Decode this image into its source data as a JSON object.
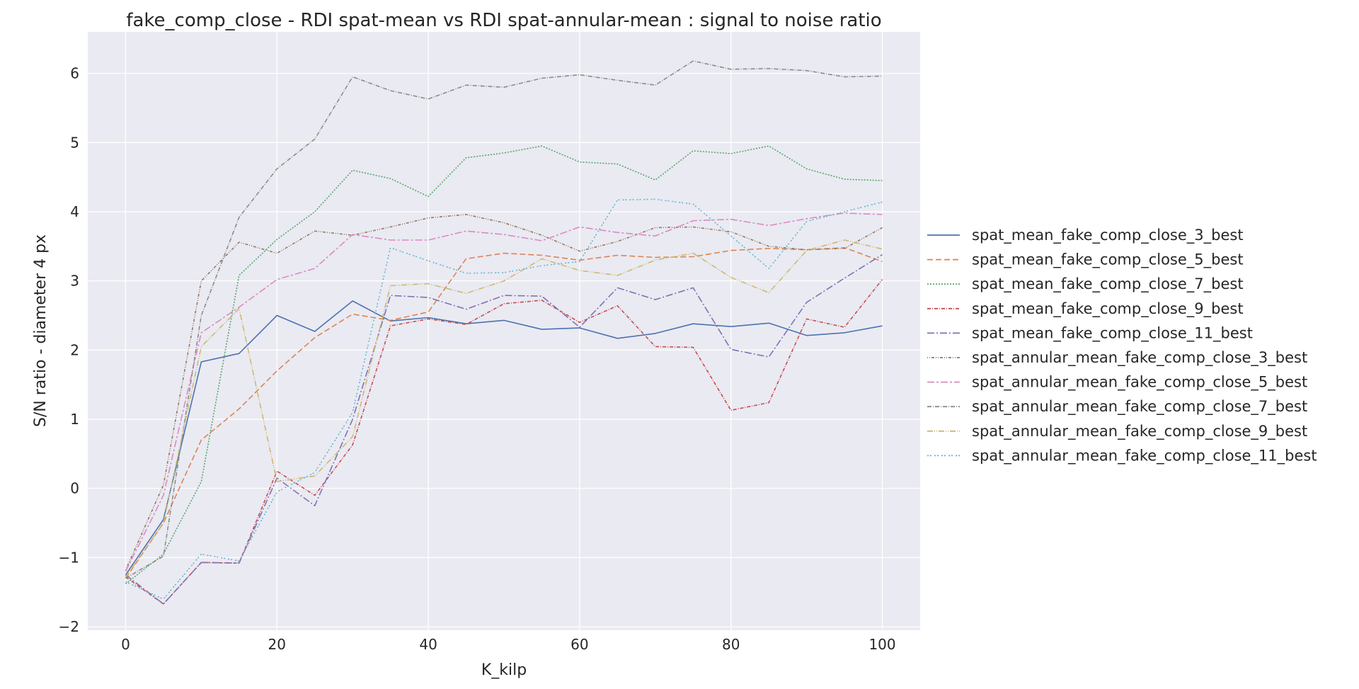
{
  "chart_data": {
    "type": "line",
    "title": "fake_comp_close - RDI spat-mean vs RDI spat-annular-mean : signal to noise ratio",
    "xlabel": "K_kilp",
    "ylabel": "S/N ratio - diameter 4 px",
    "xlim": [
      -5,
      105
    ],
    "ylim": [
      -2.05,
      6.6
    ],
    "xticks": [
      0,
      20,
      40,
      60,
      80,
      100
    ],
    "yticks": [
      -2,
      -1,
      0,
      1,
      2,
      3,
      4,
      5,
      6
    ],
    "ytick_labels": [
      "−2",
      "−1",
      "0",
      "1",
      "2",
      "3",
      "4",
      "5",
      "6"
    ],
    "grid": true,
    "legend_position": "right",
    "x": [
      0,
      5,
      10,
      15,
      20,
      25,
      30,
      35,
      40,
      45,
      50,
      55,
      60,
      65,
      70,
      75,
      80,
      85,
      90,
      95,
      100
    ],
    "series": [
      {
        "name": "spat_mean_fake_comp_close_3_best",
        "color": "#4c72b0",
        "dash": "",
        "values": [
          -1.25,
          -0.45,
          1.83,
          1.95,
          2.5,
          2.27,
          2.71,
          2.42,
          2.47,
          2.38,
          2.43,
          2.3,
          2.32,
          2.17,
          2.24,
          2.38,
          2.34,
          2.39,
          2.21,
          2.25,
          2.35
        ]
      },
      {
        "name": "spat_mean_fake_comp_close_5_best",
        "color": "#dd8452",
        "dash": "8,4",
        "values": [
          -1.3,
          -0.5,
          0.7,
          1.15,
          1.7,
          2.18,
          2.52,
          2.43,
          2.55,
          3.32,
          3.4,
          3.37,
          3.3,
          3.37,
          3.34,
          3.35,
          3.44,
          3.47,
          3.45,
          3.48,
          3.28
        ]
      },
      {
        "name": "spat_mean_fake_comp_close_7_best",
        "color": "#55a868",
        "dash": "2,2",
        "values": [
          -1.38,
          -0.95,
          0.1,
          3.08,
          3.6,
          4.0,
          4.6,
          4.48,
          4.22,
          4.78,
          4.85,
          4.95,
          4.72,
          4.69,
          4.46,
          4.88,
          4.84,
          4.95,
          4.62,
          4.47,
          4.45
        ]
      },
      {
        "name": "spat_mean_fake_comp_close_9_best",
        "color": "#c44e52",
        "dash": "5,2,1,2",
        "values": [
          -1.28,
          -1.67,
          -1.07,
          -1.08,
          0.25,
          -0.1,
          0.63,
          2.35,
          2.45,
          2.37,
          2.67,
          2.72,
          2.4,
          2.64,
          2.05,
          2.04,
          1.13,
          1.24,
          2.45,
          2.33,
          3.02
        ]
      },
      {
        "name": "spat_mean_fake_comp_close_11_best",
        "color": "#8172b3",
        "dash": "10,3,2,3",
        "values": [
          -1.25,
          -1.67,
          -1.07,
          -1.08,
          0.15,
          -0.25,
          1.0,
          2.79,
          2.76,
          2.59,
          2.79,
          2.78,
          2.33,
          2.9,
          2.73,
          2.9,
          2.01,
          1.9,
          2.69,
          3.04,
          3.38
        ]
      },
      {
        "name": "spat_annular_mean_fake_comp_close_3_best",
        "color": "#937860",
        "dash": "1,2,1,2,4,2",
        "values": [
          -1.18,
          0.05,
          3.0,
          3.56,
          3.4,
          3.72,
          3.66,
          3.78,
          3.91,
          3.96,
          3.84,
          3.66,
          3.43,
          3.57,
          3.77,
          3.78,
          3.71,
          3.5,
          3.45,
          3.47,
          3.77
        ]
      },
      {
        "name": "spat_annular_mean_fake_comp_close_5_best",
        "color": "#da8bc3",
        "dash": "10,3,3,3",
        "values": [
          -1.2,
          -0.1,
          2.25,
          2.62,
          3.02,
          3.18,
          3.67,
          3.59,
          3.59,
          3.72,
          3.67,
          3.58,
          3.78,
          3.7,
          3.65,
          3.87,
          3.89,
          3.8,
          3.9,
          3.98,
          3.96
        ]
      },
      {
        "name": "spat_annular_mean_fake_comp_close_7_best",
        "color": "#8c8c8c",
        "dash": "6,2,1,2",
        "values": [
          -1.3,
          -0.98,
          2.5,
          3.92,
          4.62,
          5.05,
          5.95,
          5.75,
          5.63,
          5.83,
          5.8,
          5.93,
          5.98,
          5.9,
          5.83,
          6.18,
          6.06,
          6.07,
          6.04,
          5.95,
          5.96
        ]
      },
      {
        "name": "spat_annular_mean_fake_comp_close_9_best",
        "color": "#ccb974",
        "dash": "8,2,1,2,1,2",
        "values": [
          -1.28,
          -0.5,
          2.05,
          2.6,
          0.1,
          0.18,
          0.75,
          2.93,
          2.96,
          2.82,
          3.0,
          3.32,
          3.15,
          3.08,
          3.3,
          3.4,
          3.05,
          2.83,
          3.44,
          3.59,
          3.46
        ]
      },
      {
        "name": "spat_annular_mean_fake_comp_close_11_best",
        "color": "#64b5cd",
        "dash": "2,2,2,4",
        "values": [
          -1.35,
          -1.6,
          -0.95,
          -1.05,
          -0.05,
          0.23,
          1.1,
          3.48,
          3.29,
          3.11,
          3.12,
          3.22,
          3.28,
          4.17,
          4.18,
          4.11,
          3.65,
          3.18,
          3.86,
          4.0,
          4.14
        ]
      }
    ]
  }
}
